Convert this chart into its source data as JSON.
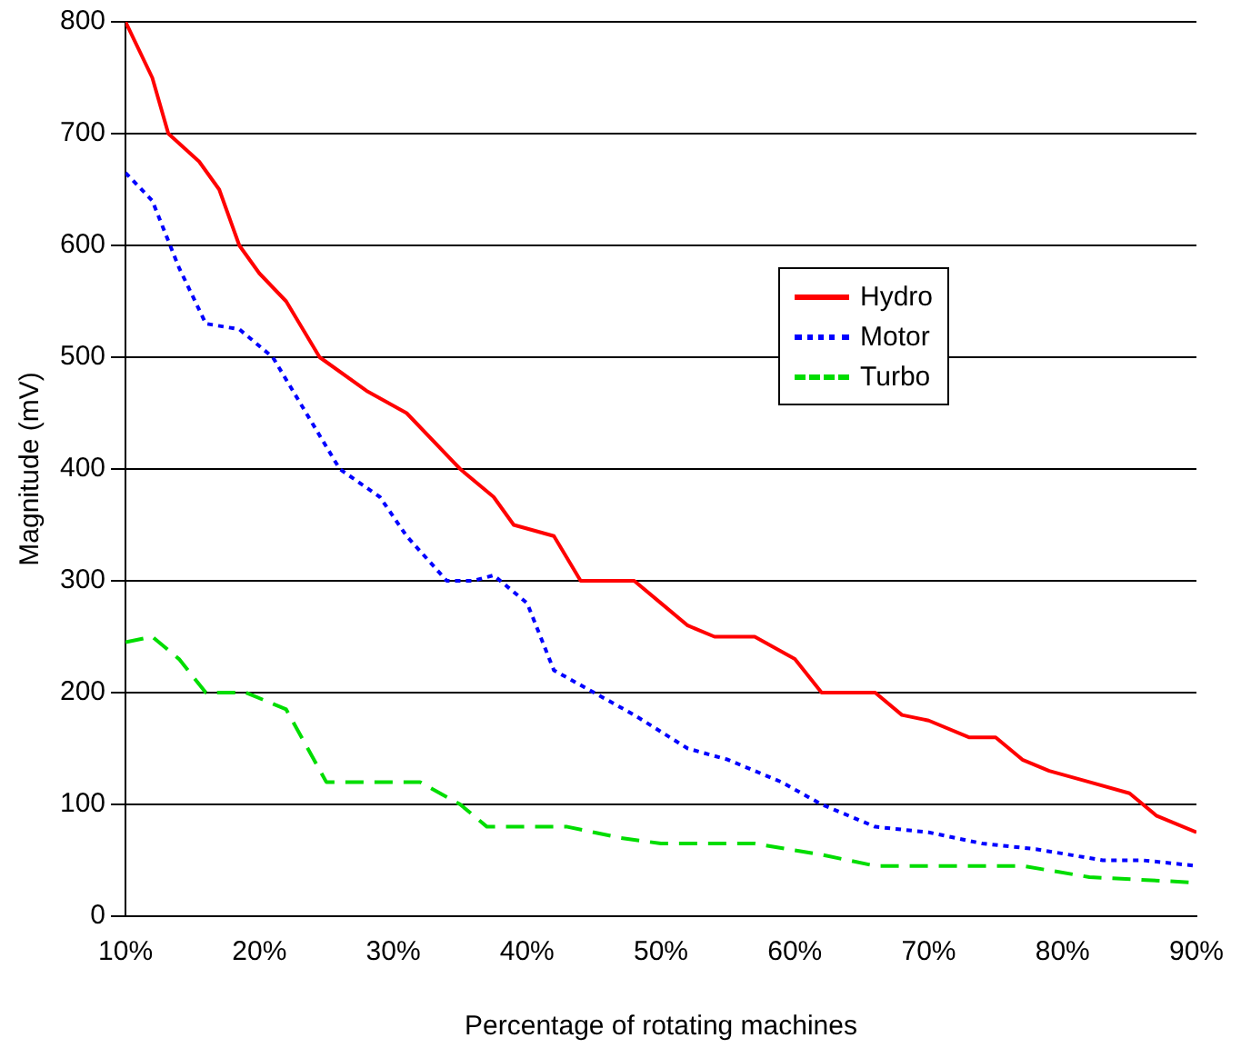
{
  "chart_data": {
    "type": "line",
    "xlabel": "Percentage of rotating machines",
    "ylabel": "Magnitude (mV)",
    "xlim": [
      10,
      90
    ],
    "xticks": [
      {
        "value": 10,
        "label": "10%"
      },
      {
        "value": 20,
        "label": "20%"
      },
      {
        "value": 30,
        "label": "30%"
      },
      {
        "value": 40,
        "label": "40%"
      },
      {
        "value": 50,
        "label": "50%"
      },
      {
        "value": 60,
        "label": "60%"
      },
      {
        "value": 70,
        "label": "70%"
      },
      {
        "value": 80,
        "label": "80%"
      },
      {
        "value": 90,
        "label": "90%"
      }
    ],
    "ylim": [
      0,
      800
    ],
    "yticks": [
      0,
      100,
      200,
      300,
      400,
      500,
      600,
      700,
      800
    ],
    "grid": "y",
    "legend": "right",
    "marker": "none",
    "series": [
      {
        "name": "Hydro",
        "color": "#ff0000",
        "line_style": "solid",
        "x": [
          10,
          12,
          13.2,
          15.5,
          17,
          18.5,
          20,
          22,
          24.5,
          28,
          31,
          35,
          37.5,
          39,
          42,
          44,
          48,
          50,
          52,
          54,
          57,
          60,
          62,
          66,
          68,
          70,
          73,
          75,
          77,
          79,
          82,
          85,
          87,
          90
        ],
        "values": [
          800,
          750,
          700,
          675,
          650,
          600,
          575,
          550,
          500,
          470,
          450,
          400,
          375,
          350,
          340,
          300,
          300,
          280,
          260,
          250,
          250,
          230,
          200,
          200,
          180,
          175,
          160,
          160,
          140,
          130,
          120,
          110,
          90,
          75
        ]
      },
      {
        "name": "Motor",
        "color": "#0000ff",
        "line_style": "dotted",
        "x": [
          10,
          12,
          14,
          16,
          18.5,
          21,
          23,
          26,
          29,
          31,
          34,
          36,
          37.5,
          40,
          42,
          45,
          48,
          52,
          55,
          59,
          62,
          66,
          70,
          74,
          78,
          83,
          86,
          90
        ],
        "values": [
          665,
          640,
          580,
          530,
          525,
          500,
          460,
          400,
          375,
          340,
          300,
          300,
          305,
          280,
          220,
          200,
          180,
          150,
          140,
          120,
          100,
          80,
          75,
          65,
          60,
          50,
          50,
          45
        ]
      },
      {
        "name": "Turbo",
        "color": "#00dd00",
        "line_style": "dashed",
        "x": [
          10,
          12,
          14,
          16,
          19,
          22,
          25,
          28,
          32,
          35,
          37,
          43,
          47,
          50,
          57,
          62,
          66,
          72,
          77,
          82,
          90
        ],
        "values": [
          245,
          250,
          230,
          200,
          200,
          185,
          120,
          120,
          120,
          100,
          80,
          80,
          70,
          65,
          65,
          55,
          45,
          45,
          45,
          35,
          30
        ]
      }
    ]
  }
}
